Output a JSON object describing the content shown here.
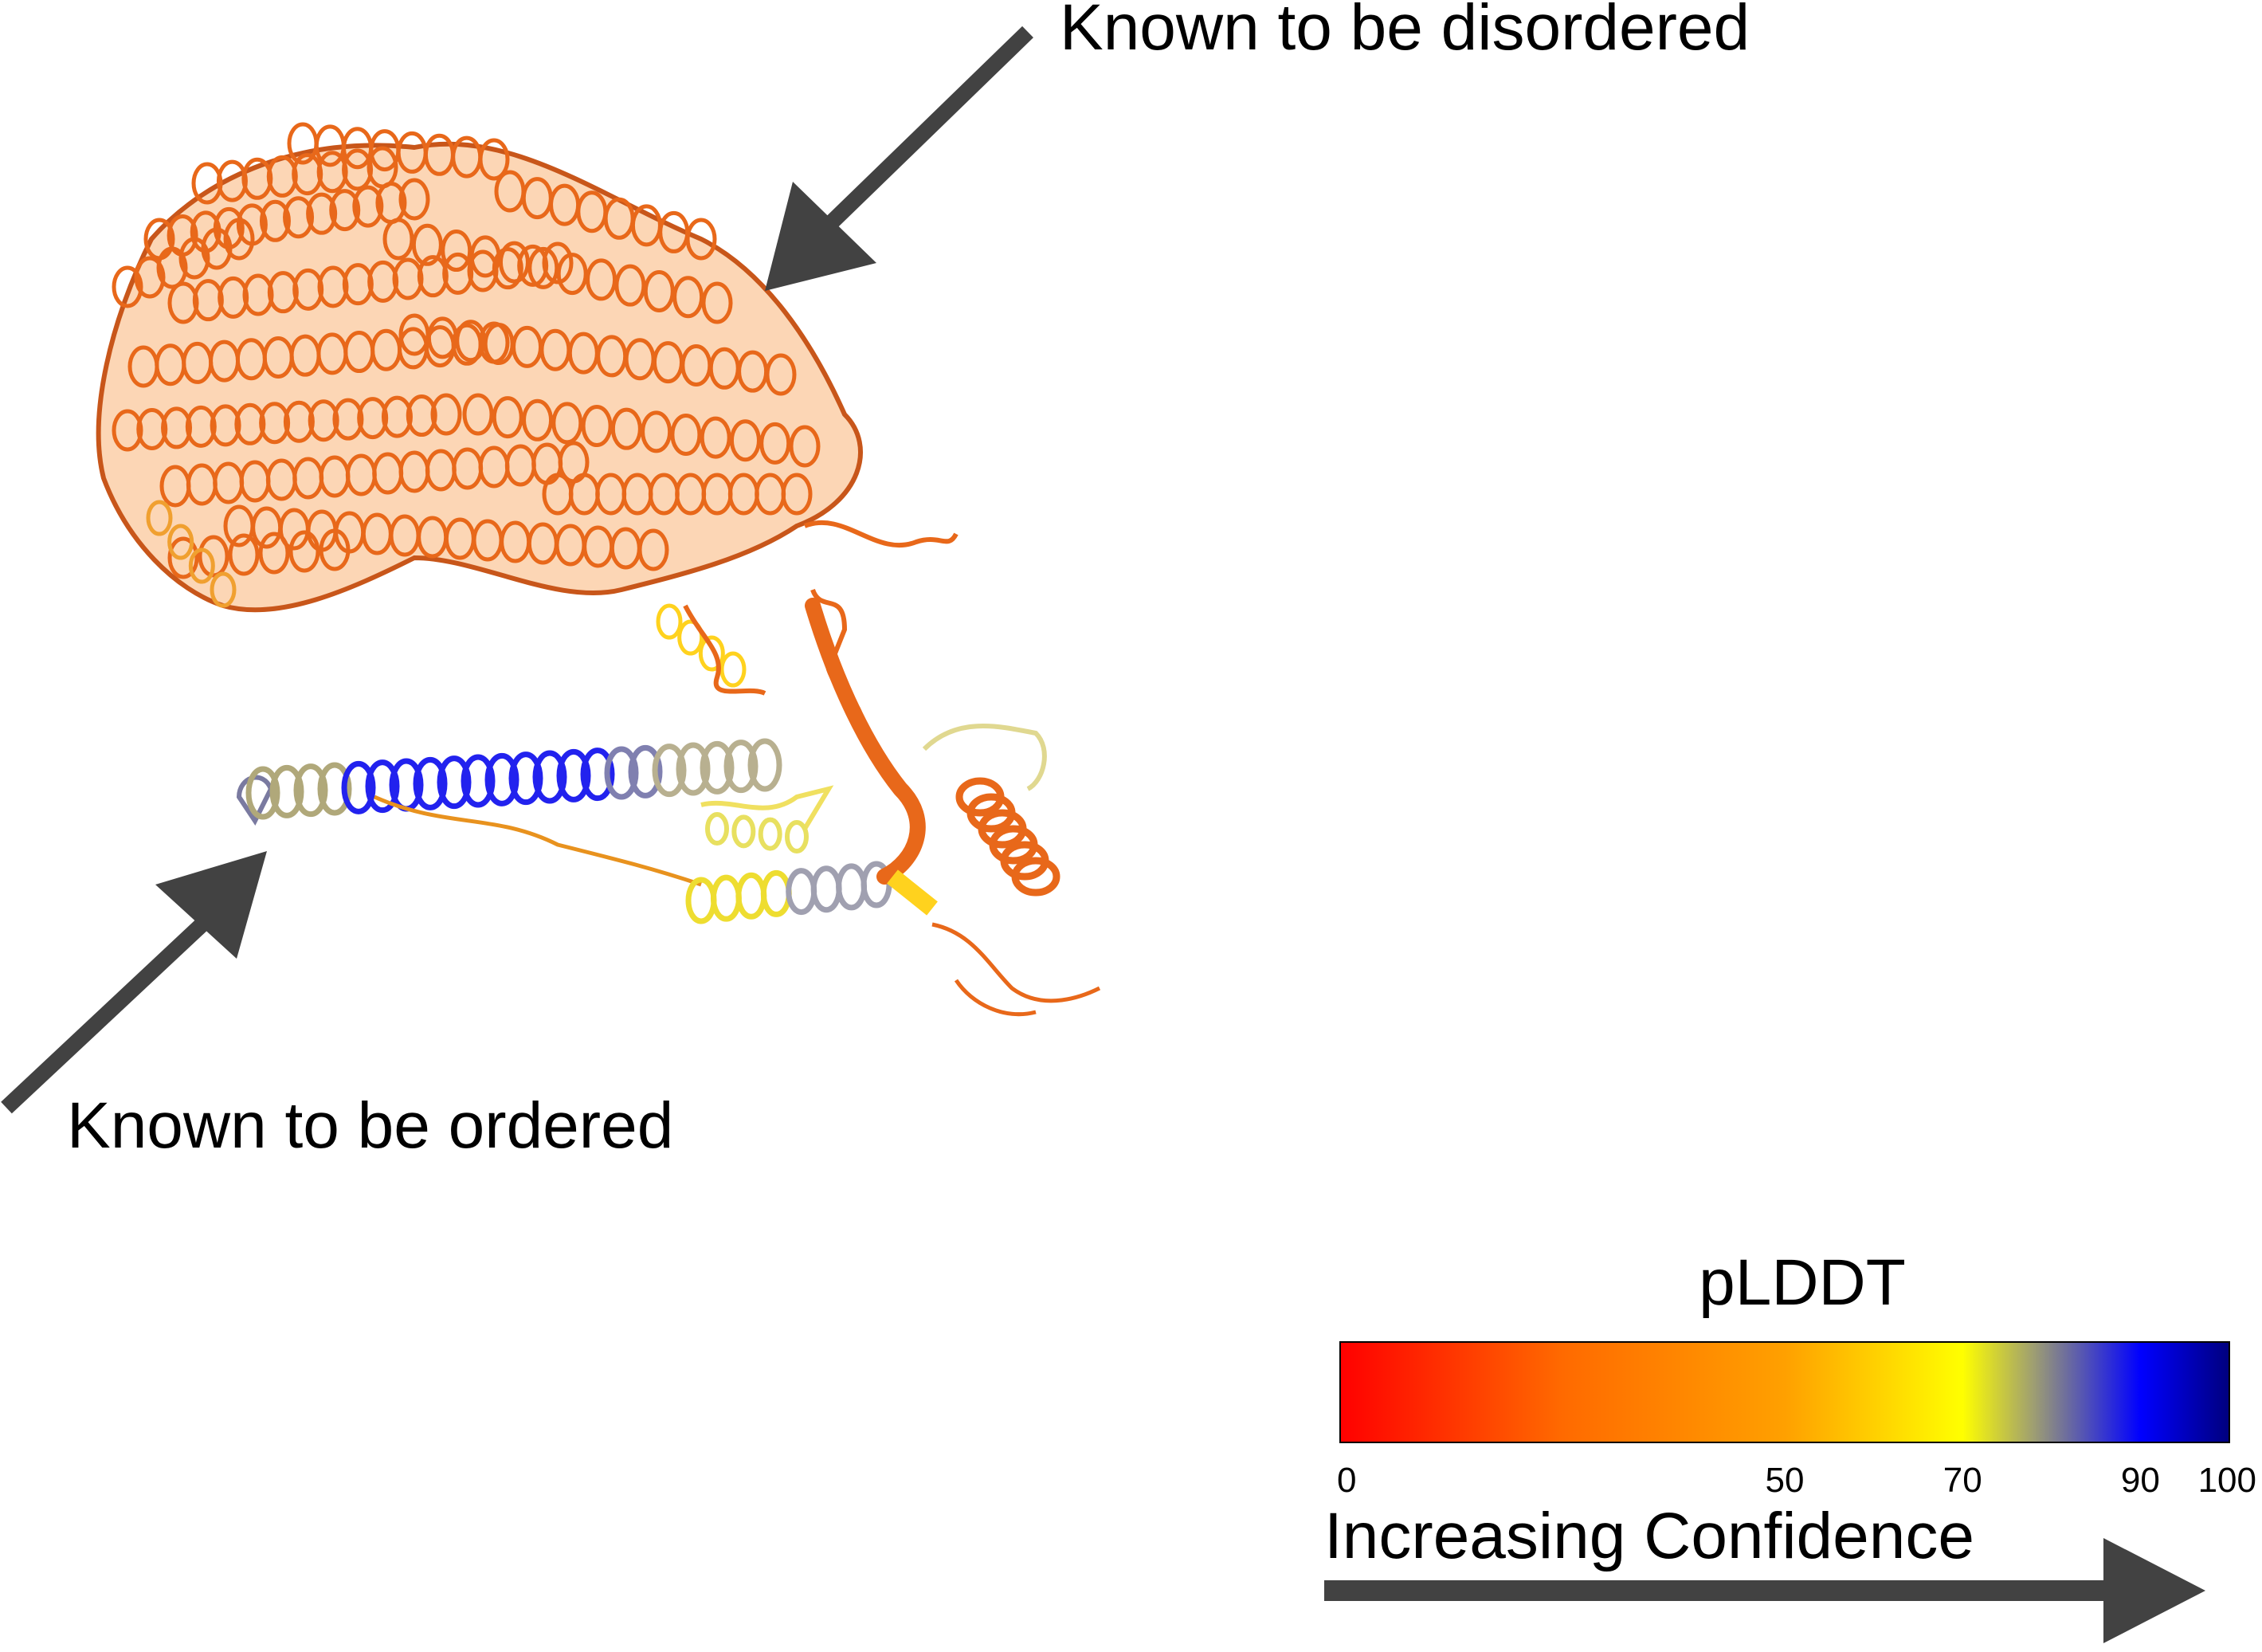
{
  "annotations": {
    "disordered_label": "Known to be disordered",
    "ordered_label": "Known to be ordered"
  },
  "legend": {
    "title": "pLDDT",
    "ticks": [
      {
        "value": 0,
        "label": "0"
      },
      {
        "value": 50,
        "label": "50"
      },
      {
        "value": 70,
        "label": "70"
      },
      {
        "value": 90,
        "label": "90"
      },
      {
        "value": 100,
        "label": "100"
      }
    ],
    "range": [
      0,
      100
    ],
    "gradient_stops": [
      {
        "value": 0,
        "color": "#ff0000"
      },
      {
        "value": 25,
        "color": "#ff6a00"
      },
      {
        "value": 50,
        "color": "#ffa000"
      },
      {
        "value": 70,
        "color": "#ffff00"
      },
      {
        "value": 78,
        "color": "#9e9e72"
      },
      {
        "value": 90,
        "color": "#0000ff"
      },
      {
        "value": 100,
        "color": "#00007e"
      }
    ],
    "direction_label": "Increasing Confidence"
  },
  "colors": {
    "arrow": "#424242",
    "low_confidence": "#f07a1e",
    "medium_confidence": "#ffd21e",
    "high_confidence": "#1e1ee6",
    "transition": "#a8a07a"
  }
}
